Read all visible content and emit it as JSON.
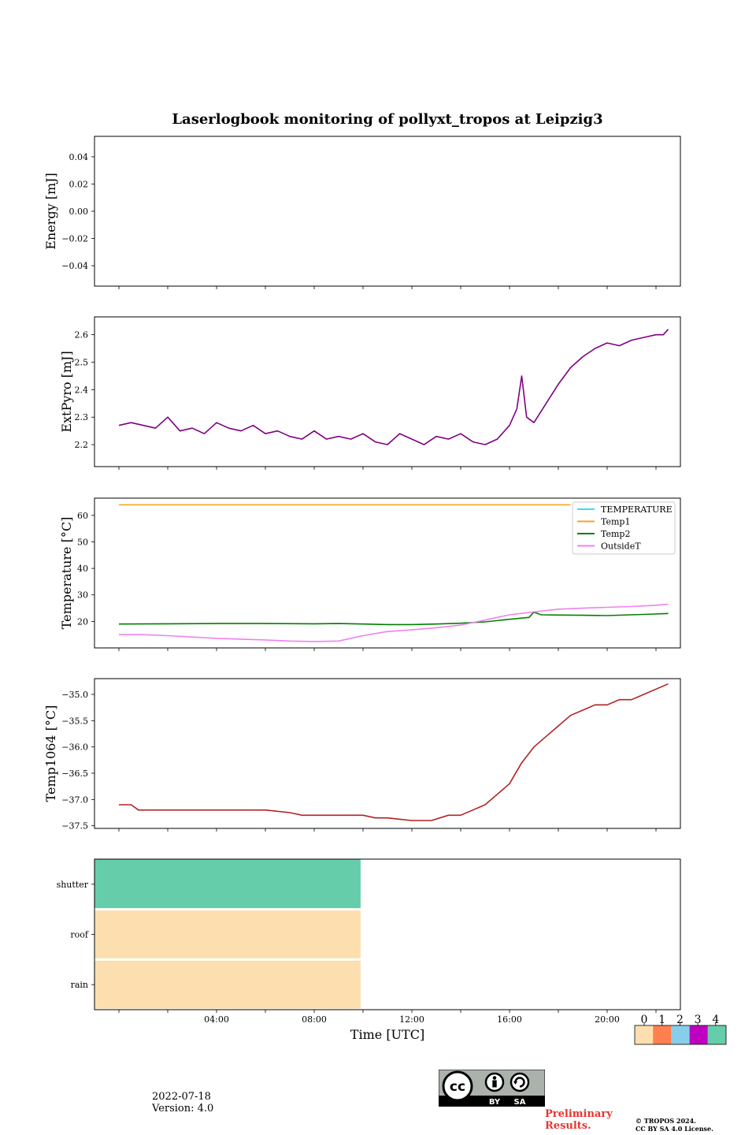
{
  "chart_data": {
    "title": "Laserlogbook monitoring of pollyxt_tropos at Leipzig3",
    "date": "2022-07-18",
    "version": "Version: 4.0",
    "xlabel": "Time [UTC]",
    "xlim_hours": [
      -1.0,
      23.0
    ],
    "x_ticks": [
      {
        "h": 4,
        "label": "04:00"
      },
      {
        "h": 8,
        "label": "08:00"
      },
      {
        "h": 12,
        "label": "12:00"
      },
      {
        "h": 16,
        "label": "16:00"
      },
      {
        "h": 20,
        "label": "20:00"
      }
    ],
    "panels": [
      {
        "key": "energy",
        "type": "line",
        "ylabel": "Energy [mJ]",
        "ylim": [
          -0.055,
          0.055
        ],
        "yticks": [
          {
            "v": 0.04,
            "label": "0.04"
          },
          {
            "v": 0.02,
            "label": "0.02"
          },
          {
            "v": 0.0,
            "label": "0.00"
          },
          {
            "v": -0.02,
            "label": "−0.02"
          },
          {
            "v": -0.04,
            "label": "−0.04"
          }
        ],
        "series": []
      },
      {
        "key": "extpyro",
        "type": "line",
        "ylabel": "ExtPyro [mJ]",
        "ylim": [
          2.12,
          2.665
        ],
        "yticks": [
          {
            "v": 2.2,
            "label": "2.2"
          },
          {
            "v": 2.3,
            "label": "2.3"
          },
          {
            "v": 2.4,
            "label": "2.4"
          },
          {
            "v": 2.5,
            "label": "2.5"
          },
          {
            "v": 2.6,
            "label": "2.6"
          }
        ],
        "series": [
          {
            "name": "ExtPyro",
            "color": "#800080",
            "x": [
              0.0,
              0.5,
              1.0,
              1.5,
              2.0,
              2.5,
              3.0,
              3.5,
              4.0,
              4.5,
              5.0,
              5.5,
              6.0,
              6.5,
              7.0,
              7.5,
              8.0,
              8.5,
              9.0,
              9.5,
              10.0,
              10.5,
              11.0,
              11.5,
              12.0,
              12.5,
              13.0,
              13.5,
              14.0,
              14.5,
              15.0,
              15.5,
              16.0,
              16.3,
              16.5,
              16.7,
              17.0,
              17.5,
              18.0,
              18.5,
              19.0,
              19.5,
              20.0,
              20.5,
              21.0,
              21.5,
              22.0,
              22.3,
              22.5
            ],
            "y": [
              2.27,
              2.28,
              2.27,
              2.26,
              2.3,
              2.25,
              2.26,
              2.24,
              2.28,
              2.26,
              2.25,
              2.27,
              2.24,
              2.25,
              2.23,
              2.22,
              2.25,
              2.22,
              2.23,
              2.22,
              2.24,
              2.21,
              2.2,
              2.24,
              2.22,
              2.2,
              2.23,
              2.22,
              2.24,
              2.21,
              2.2,
              2.22,
              2.27,
              2.33,
              2.45,
              2.3,
              2.28,
              2.35,
              2.42,
              2.48,
              2.52,
              2.55,
              2.57,
              2.56,
              2.58,
              2.59,
              2.6,
              2.6,
              2.62
            ]
          }
        ]
      },
      {
        "key": "temperature",
        "type": "line",
        "ylabel": "Temperature [°C]",
        "ylim": [
          10,
          66.5
        ],
        "yticks": [
          {
            "v": 20,
            "label": "20"
          },
          {
            "v": 30,
            "label": "30"
          },
          {
            "v": 40,
            "label": "40"
          },
          {
            "v": 50,
            "label": "50"
          },
          {
            "v": 60,
            "label": "60"
          }
        ],
        "legend": "upper right",
        "series": [
          {
            "name": "TEMPERATURE",
            "color": "#40e0e8",
            "x": [],
            "y": []
          },
          {
            "name": "Temp1",
            "color": "#f5a623",
            "x": [
              0.0,
              18.5
            ],
            "y": [
              64,
              64
            ]
          },
          {
            "name": "Temp2",
            "color": "#008000",
            "x": [
              0.0,
              2.0,
              4.0,
              6.0,
              8.0,
              9.0,
              10.0,
              11.0,
              12.0,
              13.0,
              14.0,
              15.0,
              16.0,
              16.8,
              17.0,
              17.3,
              18.0,
              19.0,
              20.0,
              21.0,
              22.0,
              22.5
            ],
            "y": [
              19.0,
              19.1,
              19.2,
              19.2,
              19.1,
              19.2,
              19.0,
              18.8,
              18.8,
              19.0,
              19.3,
              19.8,
              20.8,
              21.5,
              23.5,
              22.5,
              22.4,
              22.3,
              22.2,
              22.5,
              22.8,
              23.0
            ]
          },
          {
            "name": "OutsideT",
            "color": "#ee82ee",
            "x": [
              0.0,
              1.0,
              2.0,
              3.0,
              4.0,
              5.0,
              6.0,
              7.0,
              8.0,
              9.0,
              10.0,
              11.0,
              12.0,
              13.0,
              14.0,
              15.0,
              16.0,
              17.0,
              18.0,
              19.0,
              20.0,
              21.0,
              22.0,
              22.5
            ],
            "y": [
              15.0,
              15.0,
              14.6,
              14.1,
              13.6,
              13.3,
              13.0,
              12.6,
              12.4,
              12.6,
              14.6,
              16.2,
              16.8,
              17.6,
              18.6,
              20.5,
              22.5,
              23.6,
              24.6,
              25.0,
              25.3,
              25.6,
              26.1,
              26.5
            ]
          }
        ]
      },
      {
        "key": "temp1064",
        "type": "line",
        "ylabel": "Temp1064 [°C]",
        "ylim": [
          -37.55,
          -34.7
        ],
        "yticks": [
          {
            "v": -37.5,
            "label": "−37.5"
          },
          {
            "v": -37.0,
            "label": "−37.0"
          },
          {
            "v": -36.5,
            "label": "−36.5"
          },
          {
            "v": -36.0,
            "label": "−36.0"
          },
          {
            "v": -35.5,
            "label": "−35.5"
          },
          {
            "v": -35.0,
            "label": "−35.0"
          }
        ],
        "series": [
          {
            "name": "Temp1064",
            "color": "#b22222",
            "x": [
              0.0,
              0.5,
              0.8,
              1.5,
              5.5,
              6.0,
              7.0,
              7.5,
              10.0,
              10.5,
              11.0,
              12.0,
              12.8,
              13.5,
              14.0,
              14.5,
              15.0,
              15.5,
              16.0,
              16.5,
              17.0,
              17.5,
              18.0,
              18.5,
              19.0,
              19.5,
              20.0,
              20.5,
              21.0,
              21.5,
              22.0,
              22.5
            ],
            "y": [
              -37.1,
              -37.1,
              -37.2,
              -37.2,
              -37.2,
              -37.2,
              -37.25,
              -37.3,
              -37.3,
              -37.35,
              -37.35,
              -37.4,
              -37.4,
              -37.3,
              -37.3,
              -37.2,
              -37.1,
              -36.9,
              -36.7,
              -36.3,
              -36.0,
              -35.8,
              -35.6,
              -35.4,
              -35.3,
              -35.2,
              -35.2,
              -35.1,
              -35.1,
              -35.0,
              -34.9,
              -34.8
            ]
          }
        ]
      },
      {
        "key": "status",
        "type": "heatmap",
        "rows": [
          "shutter",
          "roof",
          "rain"
        ],
        "blocks": [
          {
            "row": "shutter",
            "start": -1.0,
            "end": 9.9,
            "state": 4
          },
          {
            "row": "roof",
            "start": -1.0,
            "end": 9.9,
            "state": 0
          },
          {
            "row": "rain",
            "start": -1.0,
            "end": 9.9,
            "state": 0
          }
        ]
      }
    ],
    "colorbar": {
      "ticks": [
        "0",
        "1",
        "2",
        "3",
        "4"
      ],
      "colors": [
        "#fddeae",
        "#ff7f50",
        "#87ceeb",
        "#c000c0",
        "#66cdaa"
      ]
    }
  },
  "footer": {
    "preliminary_line1": "Preliminary",
    "preliminary_line2": "Results.",
    "copyright_line1": "© TROPOS 2024.",
    "copyright_line2": "CC BY SA 4.0 License."
  },
  "cc_badge": {
    "icon_name": "cc-by-sa-icon",
    "by_label": "BY",
    "sa_label": "SA",
    "cc_label": "cc"
  }
}
